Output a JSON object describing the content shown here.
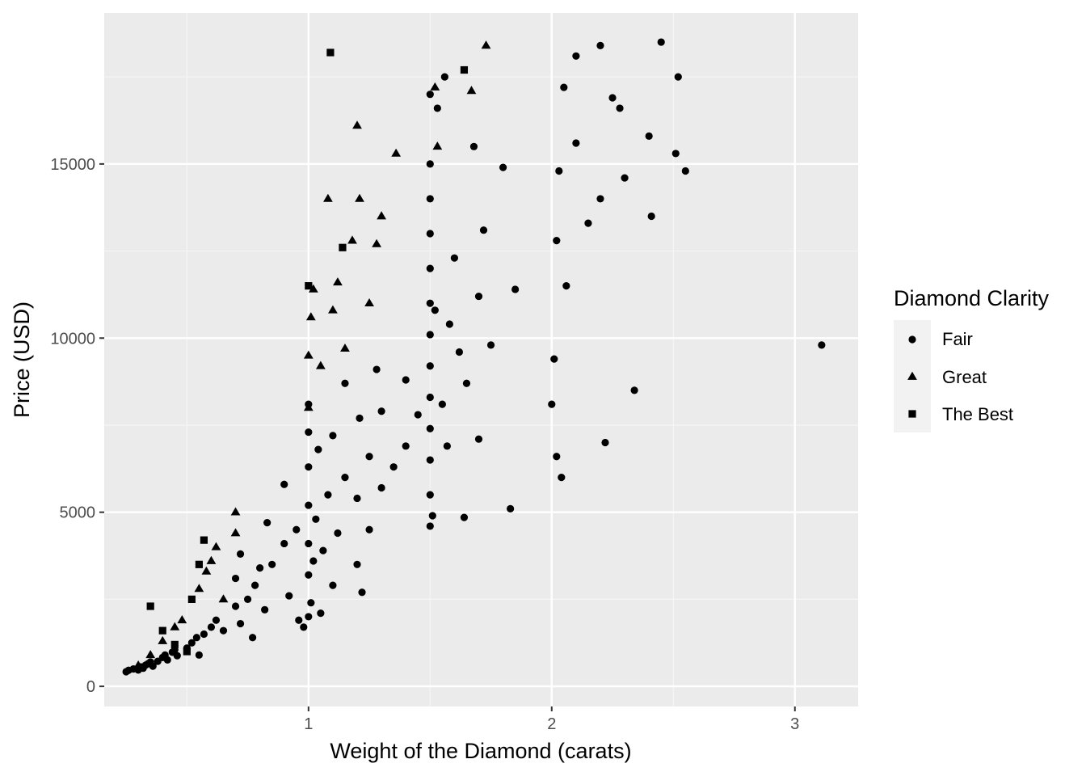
{
  "chart_data": {
    "type": "scatter",
    "xlabel": "Weight of the Diamond (carats)",
    "ylabel": "Price (USD)",
    "xlim": [
      0.16,
      3.26
    ],
    "ylim": [
      -578,
      19337
    ],
    "x_ticks": [
      1,
      2,
      3
    ],
    "x_tick_labels": [
      "1",
      "2",
      "3"
    ],
    "y_ticks": [
      0,
      5000,
      10000,
      15000
    ],
    "y_tick_labels": [
      "0",
      "5000",
      "10000",
      "15000"
    ],
    "grid": true,
    "legend": {
      "title": "Diamond Clarity",
      "placement": "right",
      "entries": [
        {
          "label": "Fair",
          "shape": "circle"
        },
        {
          "label": "Great",
          "shape": "triangle"
        },
        {
          "label": "The Best",
          "shape": "square"
        }
      ]
    },
    "colors": {
      "panel": "#ebebeb",
      "grid_major": "#ffffff",
      "grid_minor": "#f5f5f5",
      "points": "#000000"
    },
    "series": [
      {
        "name": "Fair",
        "shape": "circle",
        "points": [
          [
            0.25,
            420
          ],
          [
            0.26,
            460
          ],
          [
            0.28,
            500
          ],
          [
            0.3,
            470
          ],
          [
            0.31,
            560
          ],
          [
            0.32,
            520
          ],
          [
            0.33,
            610
          ],
          [
            0.34,
            650
          ],
          [
            0.35,
            700
          ],
          [
            0.36,
            580
          ],
          [
            0.38,
            720
          ],
          [
            0.4,
            830
          ],
          [
            0.41,
            900
          ],
          [
            0.42,
            760
          ],
          [
            0.44,
            980
          ],
          [
            0.45,
            1050
          ],
          [
            0.46,
            880
          ],
          [
            0.5,
            1100
          ],
          [
            0.52,
            1250
          ],
          [
            0.54,
            1400
          ],
          [
            0.55,
            900
          ],
          [
            0.57,
            1500
          ],
          [
            0.6,
            1700
          ],
          [
            0.62,
            1900
          ],
          [
            0.65,
            1600
          ],
          [
            0.7,
            2300
          ],
          [
            0.7,
            3100
          ],
          [
            0.72,
            1800
          ],
          [
            0.72,
            3800
          ],
          [
            0.75,
            2500
          ],
          [
            0.77,
            1400
          ],
          [
            0.78,
            2900
          ],
          [
            0.8,
            3400
          ],
          [
            0.82,
            2200
          ],
          [
            0.83,
            4700
          ],
          [
            0.85,
            3500
          ],
          [
            0.9,
            4100
          ],
          [
            0.9,
            5800
          ],
          [
            0.92,
            2600
          ],
          [
            0.95,
            4500
          ],
          [
            0.96,
            1900
          ],
          [
            0.98,
            1700
          ],
          [
            1.0,
            2000
          ],
          [
            1.0,
            3200
          ],
          [
            1.0,
            4100
          ],
          [
            1.0,
            5200
          ],
          [
            1.0,
            6300
          ],
          [
            1.0,
            7300
          ],
          [
            1.0,
            8100
          ],
          [
            1.01,
            2400
          ],
          [
            1.02,
            3600
          ],
          [
            1.03,
            4800
          ],
          [
            1.04,
            6800
          ],
          [
            1.05,
            2100
          ],
          [
            1.06,
            3900
          ],
          [
            1.08,
            5500
          ],
          [
            1.1,
            2900
          ],
          [
            1.1,
            7200
          ],
          [
            1.12,
            4400
          ],
          [
            1.15,
            6000
          ],
          [
            1.15,
            8700
          ],
          [
            1.2,
            3500
          ],
          [
            1.2,
            5400
          ],
          [
            1.21,
            7700
          ],
          [
            1.22,
            2700
          ],
          [
            1.25,
            4500
          ],
          [
            1.25,
            6600
          ],
          [
            1.28,
            9100
          ],
          [
            1.3,
            5700
          ],
          [
            1.3,
            7900
          ],
          [
            1.35,
            6300
          ],
          [
            1.4,
            6900
          ],
          [
            1.4,
            8800
          ],
          [
            1.45,
            7800
          ],
          [
            1.5,
            4600
          ],
          [
            1.5,
            5500
          ],
          [
            1.5,
            6500
          ],
          [
            1.5,
            7400
          ],
          [
            1.5,
            8300
          ],
          [
            1.5,
            9200
          ],
          [
            1.5,
            10100
          ],
          [
            1.5,
            11000
          ],
          [
            1.5,
            12000
          ],
          [
            1.5,
            13000
          ],
          [
            1.5,
            14000
          ],
          [
            1.5,
            15000
          ],
          [
            1.5,
            17000
          ],
          [
            1.51,
            4900
          ],
          [
            1.52,
            10800
          ],
          [
            1.53,
            16600
          ],
          [
            1.55,
            8100
          ],
          [
            1.56,
            17500
          ],
          [
            1.57,
            6900
          ],
          [
            1.58,
            10400
          ],
          [
            1.6,
            12300
          ],
          [
            1.62,
            9600
          ],
          [
            1.64,
            4850
          ],
          [
            1.65,
            8700
          ],
          [
            1.68,
            15500
          ],
          [
            1.7,
            7100
          ],
          [
            1.7,
            11200
          ],
          [
            1.72,
            13100
          ],
          [
            1.75,
            9800
          ],
          [
            1.8,
            14900
          ],
          [
            1.83,
            5100
          ],
          [
            1.85,
            11400
          ],
          [
            2.0,
            8100
          ],
          [
            2.01,
            9400
          ],
          [
            2.02,
            12800
          ],
          [
            2.02,
            6600
          ],
          [
            2.03,
            14800
          ],
          [
            2.04,
            6000
          ],
          [
            2.05,
            17200
          ],
          [
            2.06,
            11500
          ],
          [
            2.1,
            18100
          ],
          [
            2.1,
            15600
          ],
          [
            2.15,
            13300
          ],
          [
            2.2,
            18400
          ],
          [
            2.2,
            14000
          ],
          [
            2.22,
            7000
          ],
          [
            2.25,
            16900
          ],
          [
            2.28,
            16600
          ],
          [
            2.3,
            14600
          ],
          [
            2.34,
            8500
          ],
          [
            2.4,
            15800
          ],
          [
            2.41,
            13500
          ],
          [
            2.45,
            18500
          ],
          [
            2.51,
            15300
          ],
          [
            2.52,
            17500
          ],
          [
            2.55,
            14800
          ],
          [
            3.11,
            9800
          ]
        ]
      },
      {
        "name": "Great",
        "shape": "triangle",
        "points": [
          [
            0.3,
            600
          ],
          [
            0.35,
            900
          ],
          [
            0.4,
            1300
          ],
          [
            0.45,
            1700
          ],
          [
            0.48,
            1900
          ],
          [
            0.55,
            2800
          ],
          [
            0.58,
            3300
          ],
          [
            0.6,
            3600
          ],
          [
            0.62,
            4000
          ],
          [
            0.65,
            2500
          ],
          [
            0.7,
            4400
          ],
          [
            0.7,
            5000
          ],
          [
            1.0,
            8000
          ],
          [
            1.0,
            9500
          ],
          [
            1.01,
            10600
          ],
          [
            1.02,
            11400
          ],
          [
            1.05,
            9200
          ],
          [
            1.08,
            14000
          ],
          [
            1.1,
            10800
          ],
          [
            1.12,
            11600
          ],
          [
            1.15,
            9700
          ],
          [
            1.18,
            12800
          ],
          [
            1.2,
            16100
          ],
          [
            1.21,
            14000
          ],
          [
            1.25,
            11000
          ],
          [
            1.28,
            12700
          ],
          [
            1.3,
            13500
          ],
          [
            1.36,
            15300
          ],
          [
            1.52,
            17200
          ],
          [
            1.53,
            15500
          ],
          [
            1.67,
            17100
          ],
          [
            1.73,
            18400
          ]
        ]
      },
      {
        "name": "The Best",
        "shape": "square",
        "points": [
          [
            0.35,
            2300
          ],
          [
            0.4,
            1600
          ],
          [
            0.45,
            1200
          ],
          [
            0.5,
            1000
          ],
          [
            0.52,
            2500
          ],
          [
            0.55,
            3500
          ],
          [
            0.57,
            4200
          ],
          [
            1.0,
            11500
          ],
          [
            1.09,
            18200
          ],
          [
            1.14,
            12600
          ],
          [
            1.64,
            17700
          ]
        ]
      }
    ]
  }
}
